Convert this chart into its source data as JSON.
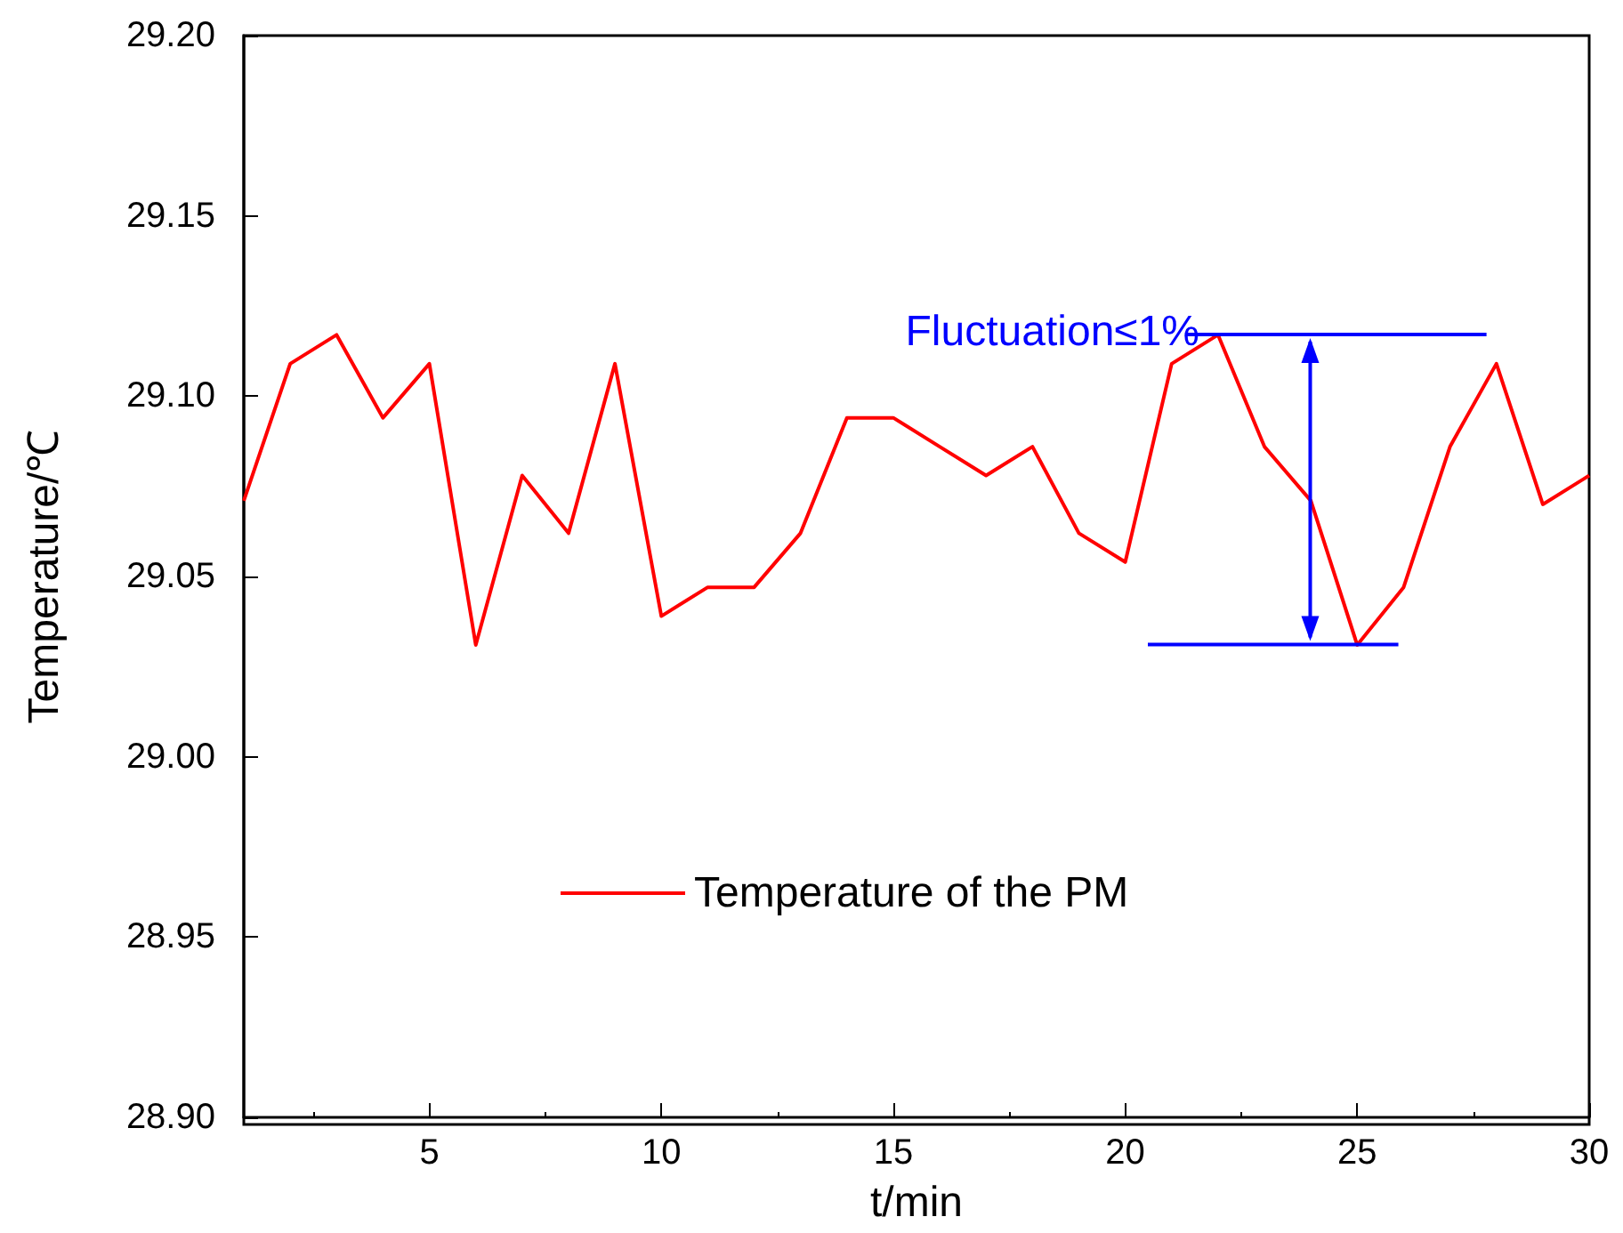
{
  "chart_data": {
    "type": "line",
    "xlabel": "t/min",
    "ylabel": "Temperature/℃",
    "x": [
      1,
      2,
      3,
      4,
      5,
      6,
      7,
      8,
      9,
      10,
      11,
      12,
      13,
      14,
      15,
      16,
      17,
      18,
      19,
      20,
      21,
      22,
      23,
      24,
      25,
      26,
      27,
      28,
      29,
      30
    ],
    "series": [
      {
        "name": "Temperature of the PM",
        "color": "#ff0000",
        "values": [
          29.071,
          29.109,
          29.117,
          29.094,
          29.109,
          29.031,
          29.078,
          29.062,
          29.109,
          29.039,
          29.047,
          29.047,
          29.062,
          29.094,
          29.094,
          29.086,
          29.078,
          29.086,
          29.062,
          29.054,
          29.109,
          29.117,
          29.086,
          29.071,
          29.031,
          29.047,
          29.086,
          29.109,
          29.07,
          29.078
        ]
      }
    ],
    "xlim": [
      1,
      30
    ],
    "xticks": [
      5,
      10,
      15,
      20,
      25,
      30
    ],
    "ylim": [
      28.9,
      29.2
    ],
    "yticks": [
      {
        "value": 28.9,
        "label": "28.90"
      },
      {
        "value": 28.95,
        "label": "28.95"
      },
      {
        "value": 29.0,
        "label": "29.00"
      },
      {
        "value": 29.05,
        "label": "29.05"
      },
      {
        "value": 29.1,
        "label": "29.10"
      },
      {
        "value": 29.15,
        "label": "29.15"
      },
      {
        "value": 29.2,
        "label": "29.20"
      }
    ],
    "annotations": [
      {
        "text": "Fluctuation≤1%",
        "x": 21.6,
        "y": 29.117
      }
    ],
    "grid": false,
    "legend": "bottom",
    "marker": "none",
    "line_style": "solid"
  }
}
